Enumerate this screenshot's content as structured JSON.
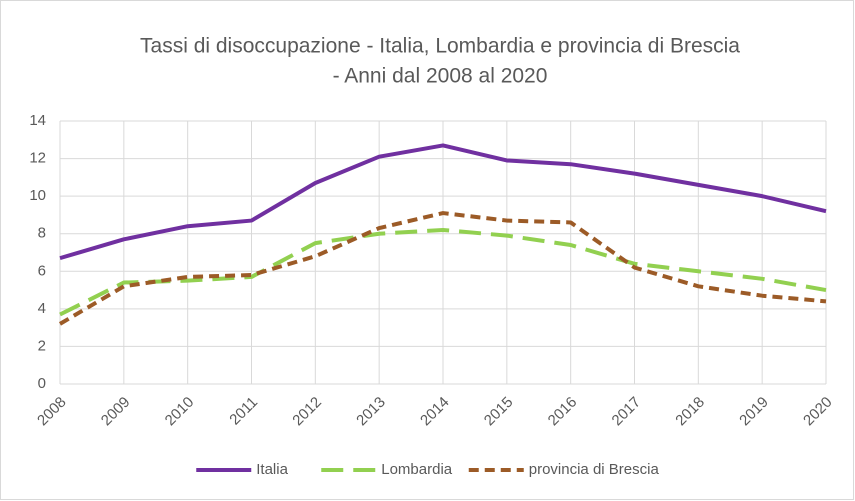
{
  "chart_data": {
    "type": "line",
    "title": [
      "Tassi di disoccupazione - Italia, Lombardia e provincia di Brescia",
      "- Anni dal 2008 al 2020"
    ],
    "categories": [
      "2008",
      "2009",
      "2010",
      "2011",
      "2012",
      "2013",
      "2014",
      "2015",
      "2016",
      "2017",
      "2018",
      "2019",
      "2020"
    ],
    "series": [
      {
        "name": "Italia",
        "color": "#7030a0",
        "values": [
          6.7,
          7.7,
          8.4,
          8.7,
          10.7,
          12.1,
          12.7,
          11.9,
          11.7,
          11.2,
          10.6,
          10.0,
          9.2
        ]
      },
      {
        "name": "Lombardia",
        "color": "#92d050",
        "values": [
          3.7,
          5.4,
          5.5,
          5.7,
          7.5,
          8.0,
          8.2,
          7.9,
          7.4,
          6.4,
          6.0,
          5.6,
          5.0
        ]
      },
      {
        "name": "provincia di Brescia",
        "color": "#9c5b27",
        "values": [
          3.2,
          5.2,
          5.7,
          5.8,
          6.8,
          8.3,
          9.1,
          8.7,
          8.6,
          6.2,
          5.2,
          4.7,
          4.4
        ]
      }
    ],
    "ylim": [
      0,
      14
    ],
    "yticks": [
      0,
      2,
      4,
      6,
      8,
      10,
      12,
      14
    ],
    "grid": true,
    "legend": "bottom"
  }
}
